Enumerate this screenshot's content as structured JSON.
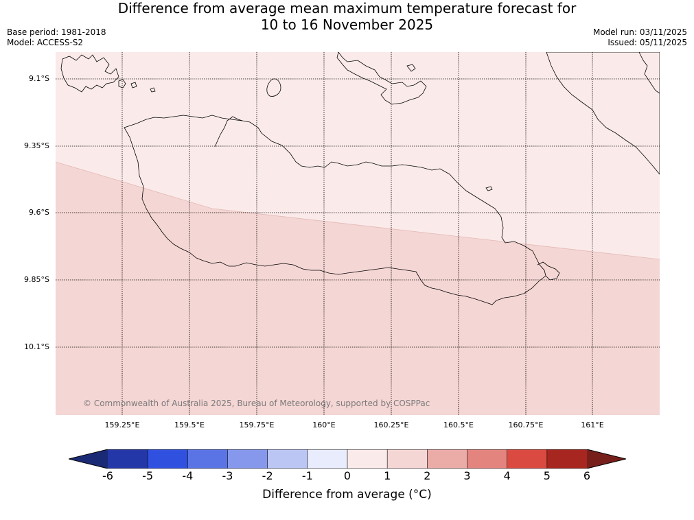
{
  "title": {
    "line1": "Difference from average mean maximum temperature forecast for",
    "line2": "10 to 16 November 2025"
  },
  "meta": {
    "base_period": "Base period: 1981-2018",
    "model": "Model: ACCESS-S2",
    "model_run": "Model run: 03/11/2025",
    "issued": "Issued: 05/11/2025"
  },
  "map": {
    "latitude_labels": [
      "9.1°S",
      "9.35°S",
      "9.6°S",
      "9.85°S",
      "10.1°S"
    ],
    "longitude_labels": [
      "159.25°E",
      "159.5°E",
      "159.75°E",
      "160°E",
      "160.25°E",
      "160.5°E",
      "160.75°E",
      "161°E"
    ],
    "copyright": "© Commonwealth of Australia 2025, Bureau of Meteorology, supported by COSPPac",
    "anomaly_zones": [
      {
        "range": "0 to 1",
        "color": "#fbeaea"
      },
      {
        "range": "1 to 2",
        "color": "#f4d6d4"
      }
    ],
    "gridlines": "dotted",
    "coastline_color": "#000000"
  },
  "colorbar": {
    "label": "Difference from average (°C)",
    "ticks": [
      "-6",
      "-5",
      "-4",
      "-3",
      "-2",
      "-1",
      "0",
      "1",
      "2",
      "3",
      "4",
      "5",
      "6"
    ],
    "low_extend_color": "#1b2a75",
    "high_extend_color": "#771f1b",
    "colors": [
      "#2437a8",
      "#3050e0",
      "#5a74e6",
      "#8598ec",
      "#bcc6f4",
      "#e8ecfc",
      "#fbeaea",
      "#f4d6d4",
      "#ebaca8",
      "#e4847e",
      "#db4a40",
      "#a82620"
    ]
  }
}
